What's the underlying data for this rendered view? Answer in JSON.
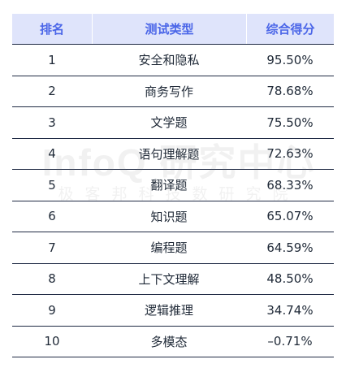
{
  "table": {
    "headers": {
      "rank": "排名",
      "test_type": "测试类型",
      "score": "综合得分"
    },
    "rows": [
      {
        "rank": "1",
        "test_type": "安全和隐私",
        "score": "95.50%"
      },
      {
        "rank": "2",
        "test_type": "商务写作",
        "score": "78.68%"
      },
      {
        "rank": "3",
        "test_type": "文学题",
        "score": "75.50%"
      },
      {
        "rank": "4",
        "test_type": "语句理解题",
        "score": "72.63%"
      },
      {
        "rank": "5",
        "test_type": "翻译题",
        "score": "68.33%"
      },
      {
        "rank": "6",
        "test_type": "知识题",
        "score": "65.07%"
      },
      {
        "rank": "7",
        "test_type": "编程题",
        "score": "64.59%"
      },
      {
        "rank": "8",
        "test_type": "上下文理解",
        "score": "48.50%"
      },
      {
        "rank": "9",
        "test_type": "逻辑推理",
        "score": "34.74%"
      },
      {
        "rank": "10",
        "test_type": "多模态",
        "score": "–0.71%"
      }
    ]
  },
  "watermark": {
    "main": "InfoQ 研究中心",
    "sub": "极客邦科技数研究院"
  },
  "colors": {
    "header_bg": "#dfe4fb",
    "header_text": "#4b66e8",
    "row_rule": "#1f2a44",
    "body_text": "#1f2937"
  }
}
